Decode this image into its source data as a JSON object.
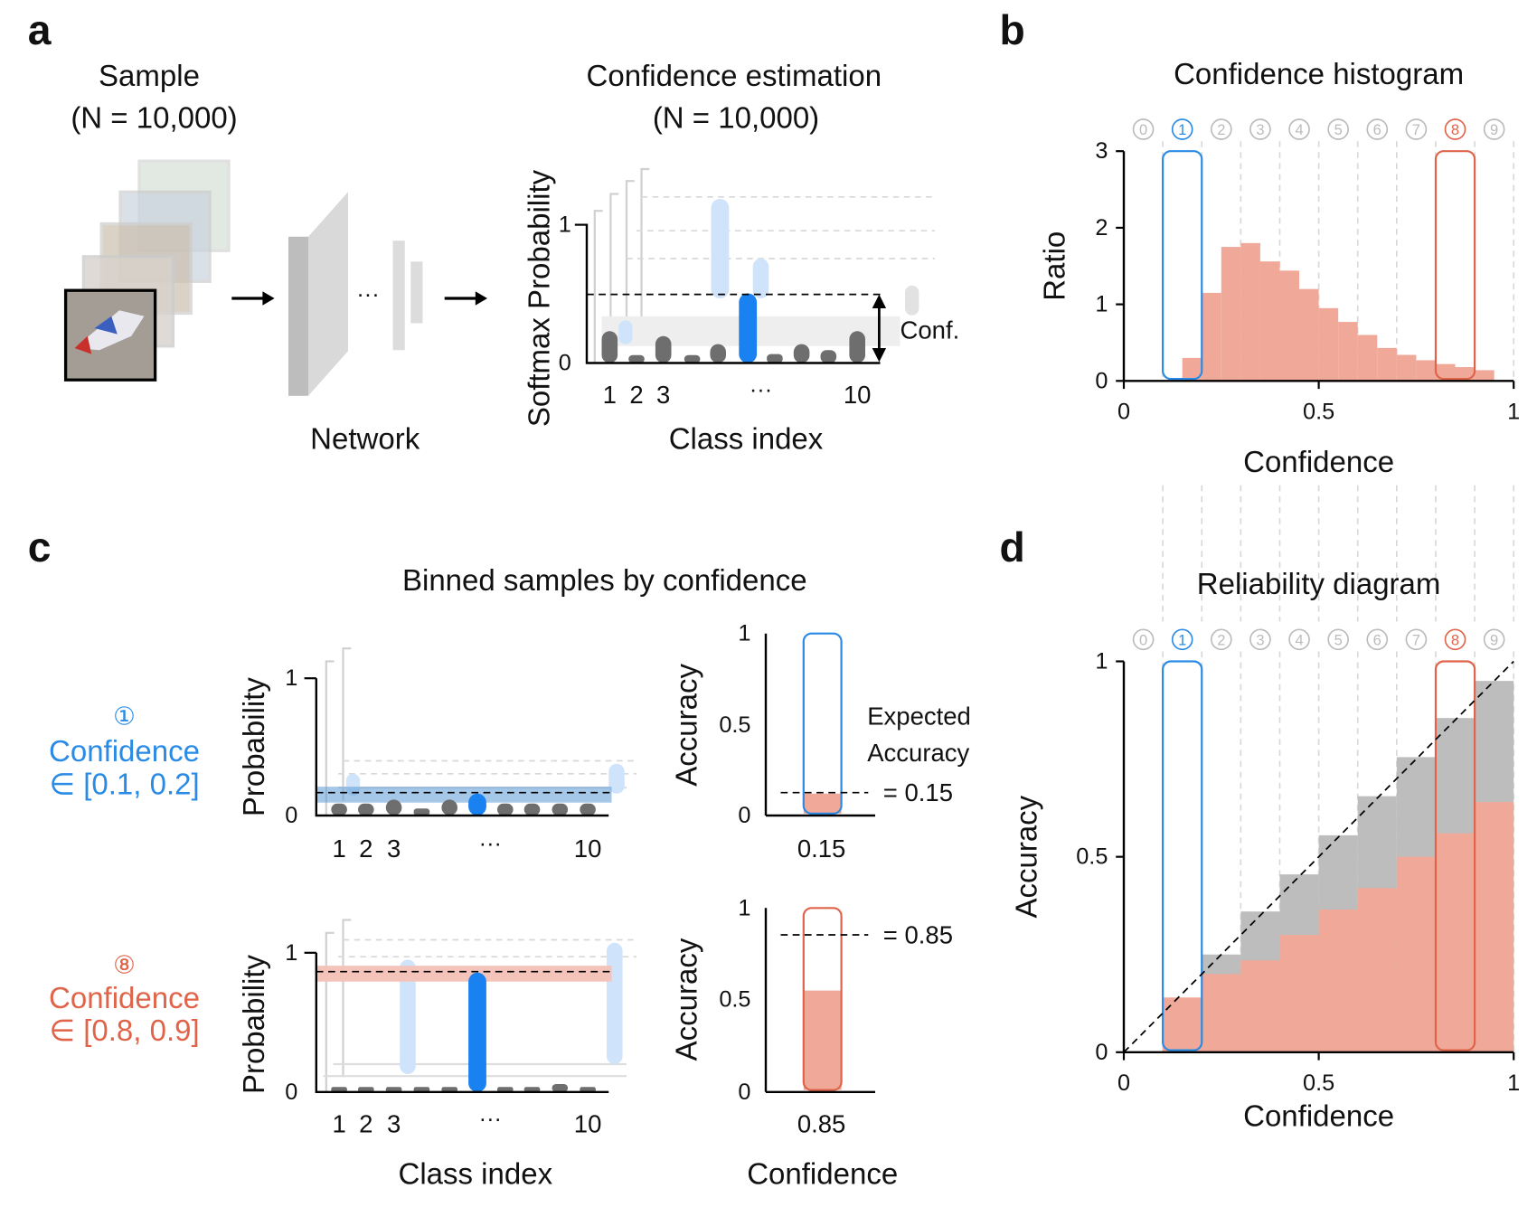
{
  "panel_labels": [
    "a",
    "b",
    "c",
    "d"
  ],
  "panel_a": {
    "sample_title": "Sample",
    "sample_n": "(N = 10,000)",
    "network_label": "Network",
    "ellipsis": "···",
    "conf_title": "Confidence estimation",
    "conf_n": "(N = 10,000)",
    "y_label": "Softmax Probability",
    "y_ticks": [
      "0",
      "1"
    ],
    "x_ticks": [
      "1",
      "2",
      "3",
      "···",
      "10"
    ],
    "x_label": "Class index",
    "conf_label": "Conf."
  },
  "panel_c": {
    "title": "Binned samples by confidence",
    "rows": [
      {
        "marker": "①",
        "label": "Confidence",
        "range": "∈ [0.1, 0.2]",
        "accuracy_tick": "0.15",
        "expected": "= 0.15"
      },
      {
        "marker": "⑧",
        "label": "Confidence",
        "range": "∈ [0.8, 0.9]",
        "accuracy_tick": "0.85",
        "expected": "= 0.85"
      }
    ],
    "expected_label": [
      "Expected",
      "Accuracy"
    ],
    "prob_label": "Probability",
    "prob_ticks": [
      "0",
      "1"
    ],
    "class_ticks": [
      "1",
      "2",
      "3",
      "···",
      "10"
    ],
    "acc_label": "Accuracy",
    "acc_ticks": [
      "0",
      "0.5",
      "1"
    ],
    "class_label": "Class index",
    "conf_label": "Confidence"
  },
  "chart_data": [
    {
      "type": "histogram",
      "title": "Confidence histogram",
      "x_label": "Confidence",
      "y_label": "Ratio",
      "bin_labels": [
        "0",
        "1",
        "2",
        "3",
        "4",
        "5",
        "6",
        "7",
        "8",
        "9"
      ],
      "highlight": [
        {
          "bin": 1,
          "color": "#2a8be6"
        },
        {
          "bin": 8,
          "color": "#e0644a"
        }
      ],
      "bins": [
        0.15,
        0.2,
        0.25,
        0.3,
        0.35,
        0.4,
        0.45,
        0.5,
        0.55,
        0.6,
        0.65,
        0.7,
        0.75,
        0.8,
        0.85,
        0.9,
        0.95
      ],
      "values": [
        0.3,
        1.15,
        1.75,
        1.8,
        1.56,
        1.44,
        1.2,
        0.95,
        0.77,
        0.6,
        0.43,
        0.34,
        0.27,
        0.22,
        0.18,
        0.14
      ],
      "color": "#f0a898",
      "xlim": [
        0,
        1
      ],
      "xticks": [
        0,
        0.5,
        1
      ],
      "ylim": [
        0,
        3
      ],
      "yticks": [
        0,
        1,
        2,
        3
      ]
    },
    {
      "type": "histogram",
      "title": "Reliability diagram",
      "x_label": "Confidence",
      "y_label": "Accuracy",
      "bin_labels": [
        "0",
        "1",
        "2",
        "3",
        "4",
        "5",
        "6",
        "7",
        "8",
        "9"
      ],
      "highlight": [
        {
          "bin": 1,
          "color": "#2a8be6"
        },
        {
          "bin": 8,
          "color": "#e0644a"
        }
      ],
      "bins": [
        0,
        0.1,
        0.2,
        0.3,
        0.4,
        0.5,
        0.6,
        0.7,
        0.8,
        0.9,
        1
      ],
      "series": [
        {
          "color": "#bdbdbd",
          "values": [
            null,
            null,
            0.25,
            0.36,
            0.455,
            0.555,
            0.655,
            0.755,
            0.855,
            0.95
          ]
        },
        {
          "color": "#f0a898",
          "values": [
            null,
            0.14,
            0.2,
            0.235,
            0.3,
            0.365,
            0.42,
            0.5,
            0.56,
            0.64
          ]
        }
      ],
      "diagonal": true,
      "xlim": [
        0,
        1
      ],
      "xticks": [
        0,
        0.5,
        1
      ],
      "ylim": [
        0,
        1
      ],
      "yticks": [
        0,
        0.5,
        1
      ]
    }
  ]
}
